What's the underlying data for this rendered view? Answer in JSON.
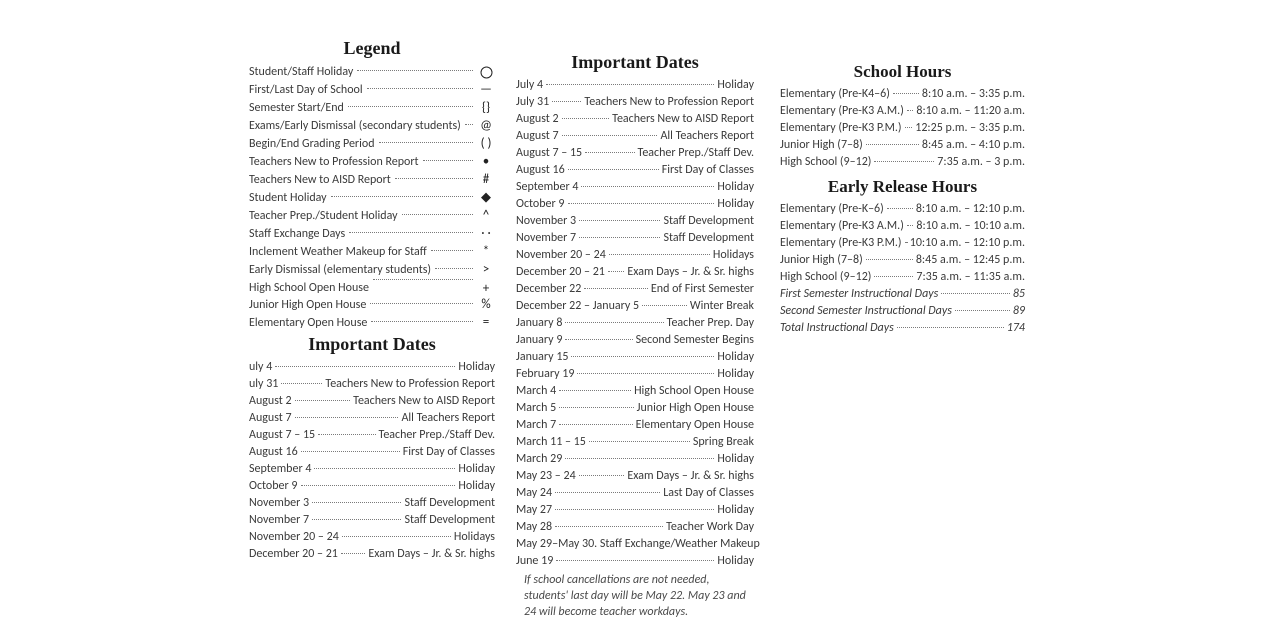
{
  "colors": {
    "text": "#3a3a3a",
    "heading": "#1a1a1a",
    "dots": "#7a7a7a",
    "background": "#ffffff"
  },
  "legend": {
    "title": "Legend",
    "items": [
      {
        "label": "Student/Staff Holiday",
        "symbol": "circle"
      },
      {
        "label": "First/Last Day of School",
        "symbol": "—"
      },
      {
        "label": "Semester Start/End",
        "symbol": "{}"
      },
      {
        "label": "Exams/Early Dismissal (secondary students)",
        "symbol": "@"
      },
      {
        "label": "Begin/End Grading Period",
        "symbol": "( )"
      },
      {
        "label": "Teachers New to Profession Report",
        "symbol": "•"
      },
      {
        "label": "Teachers New to AISD Report",
        "symbol": "#"
      },
      {
        "label": "Student Holiday",
        "symbol": "◆"
      },
      {
        "label": "Teacher Prep./Student Holiday",
        "symbol": "^"
      },
      {
        "label": "Staff Exchange Days",
        "symbol": "· ·"
      },
      {
        "label": "Inclement Weather Makeup for Staff",
        "symbol": "*"
      },
      {
        "label": "Early Dismissal (elementary students)",
        "symbol": ">",
        "sub": {
          "label": "High School Open House",
          "symbol": "+"
        }
      },
      {
        "label": "Junior High Open House",
        "symbol": "%"
      },
      {
        "label": "Elementary Open House",
        "symbol": "="
      }
    ]
  },
  "dates1": {
    "title": "Important Dates",
    "items": [
      {
        "date": "uly 4",
        "event": "Holiday"
      },
      {
        "date": "uly 31",
        "event": "Teachers New to Profession Report"
      },
      {
        "date": "August 2",
        "event": "Teachers New to AISD Report"
      },
      {
        "date": "August 7",
        "event": "All Teachers Report"
      },
      {
        "date": "August 7 – 15",
        "event": "Teacher Prep./Staff Dev."
      },
      {
        "date": "August 16",
        "event": "First Day of Classes"
      },
      {
        "date": "September 4",
        "event": "Holiday"
      },
      {
        "date": "October 9",
        "event": "Holiday"
      },
      {
        "date": "November 3",
        "event": "Staff Development"
      },
      {
        "date": "November 7",
        "event": "Staff Development"
      },
      {
        "date": "November 20 – 24",
        "event": "Holidays"
      },
      {
        "date": "December 20 – 21",
        "event": "Exam Days – Jr. & Sr. highs"
      }
    ]
  },
  "dates2": {
    "title": "Important Dates",
    "items": [
      {
        "date": "July 4",
        "event": "Holiday"
      },
      {
        "date": "July 31",
        "event": "Teachers New to Profession Report"
      },
      {
        "date": "August 2",
        "event": "Teachers New to AISD Report"
      },
      {
        "date": "August 7",
        "event": "All Teachers Report"
      },
      {
        "date": "August 7 – 15",
        "event": "Teacher Prep./Staff Dev."
      },
      {
        "date": "August 16",
        "event": "First Day of Classes"
      },
      {
        "date": "September 4",
        "event": "Holiday"
      },
      {
        "date": "October 9",
        "event": "Holiday"
      },
      {
        "date": "November 3",
        "event": "Staff Development"
      },
      {
        "date": "November 7",
        "event": "Staff Development"
      },
      {
        "date": "November 20 – 24",
        "event": "Holidays"
      },
      {
        "date": "December 20 – 21",
        "event": "Exam Days – Jr. & Sr. highs"
      },
      {
        "date": "December 22",
        "event": "End of First Semester"
      },
      {
        "date": "December 22 – January 5",
        "event": "Winter Break"
      },
      {
        "date": "January 8",
        "event": "Teacher Prep. Day"
      },
      {
        "date": "January 9",
        "event": "Second Semester Begins"
      },
      {
        "date": "January 15",
        "event": "Holiday"
      },
      {
        "date": "February 19",
        "event": "Holiday"
      },
      {
        "date": "March 4",
        "event": "High School Open House"
      },
      {
        "date": "March 5",
        "event": "Junior High Open House"
      },
      {
        "date": " March 7",
        "event": "Elementary Open House"
      },
      {
        "date": "March 11 – 15",
        "event": "Spring Break"
      },
      {
        "date": "March 29",
        "event": "Holiday"
      },
      {
        "date": "May 23 – 24",
        "event": "Exam Days – Jr. & Sr. highs"
      },
      {
        "date": "May 24",
        "event": "Last Day of Classes"
      },
      {
        "date": " May 27",
        "event": "Holiday"
      },
      {
        "date": "May 28",
        "event": "Teacher Work Day"
      },
      {
        "date": " May 29–May 30",
        "event": "Staff Exchange/Weather  Makeup",
        "nodots": true
      },
      {
        "date": "June 19",
        "event": "Holiday"
      }
    ],
    "note": "If school cancellations are not needed, students' last day will be May 22.  May 23 and 24 will become teacher workdays."
  },
  "school_hours": {
    "title": "School Hours",
    "items": [
      {
        "label": "Elementary (Pre-K4–6)",
        "value": "8:10 a.m. – 3:35 p.m."
      },
      {
        "label": "Elementary (Pre-K3 A.M.)",
        "value": "8:10 a.m. – 11:20 a.m."
      },
      {
        "label": "Elementary (Pre-K3 P.M.)",
        "value": "12:25 p.m. – 3:35 p.m."
      },
      {
        "label": "Junior High (7–8)",
        "value": "8:45 a.m. – 4:10 p.m."
      },
      {
        "label": "High School (9–12)",
        "value": "7:35 a.m. – 3 p.m."
      }
    ]
  },
  "early_release": {
    "title": "Early Release Hours",
    "items": [
      {
        "label": "Elementary (Pre-K–6)",
        "value": "8:10 a.m. – 12:10 p.m."
      },
      {
        "label": "Elementary (Pre-K3 A.M.)",
        "value": "8:10 a.m. – 10:10 a.m."
      },
      {
        "label": "Elementary (Pre-K3 P.M.)",
        "value": "10:10 a.m. – 12:10 p.m."
      },
      {
        "label": "Junior High (7–8)",
        "value": "8:45 a.m. – 12:45 p.m."
      },
      {
        "label": "High School (9–12)",
        "value": "7:35 a.m. – 11:35 a.m."
      }
    ],
    "totals": [
      {
        "label": "First Semester Instructional Days",
        "value": "85"
      },
      {
        "label": "Second Semester Instructional Days",
        "value": "89"
      },
      {
        "label": "Total Instructional Days",
        "value": "174"
      }
    ]
  }
}
